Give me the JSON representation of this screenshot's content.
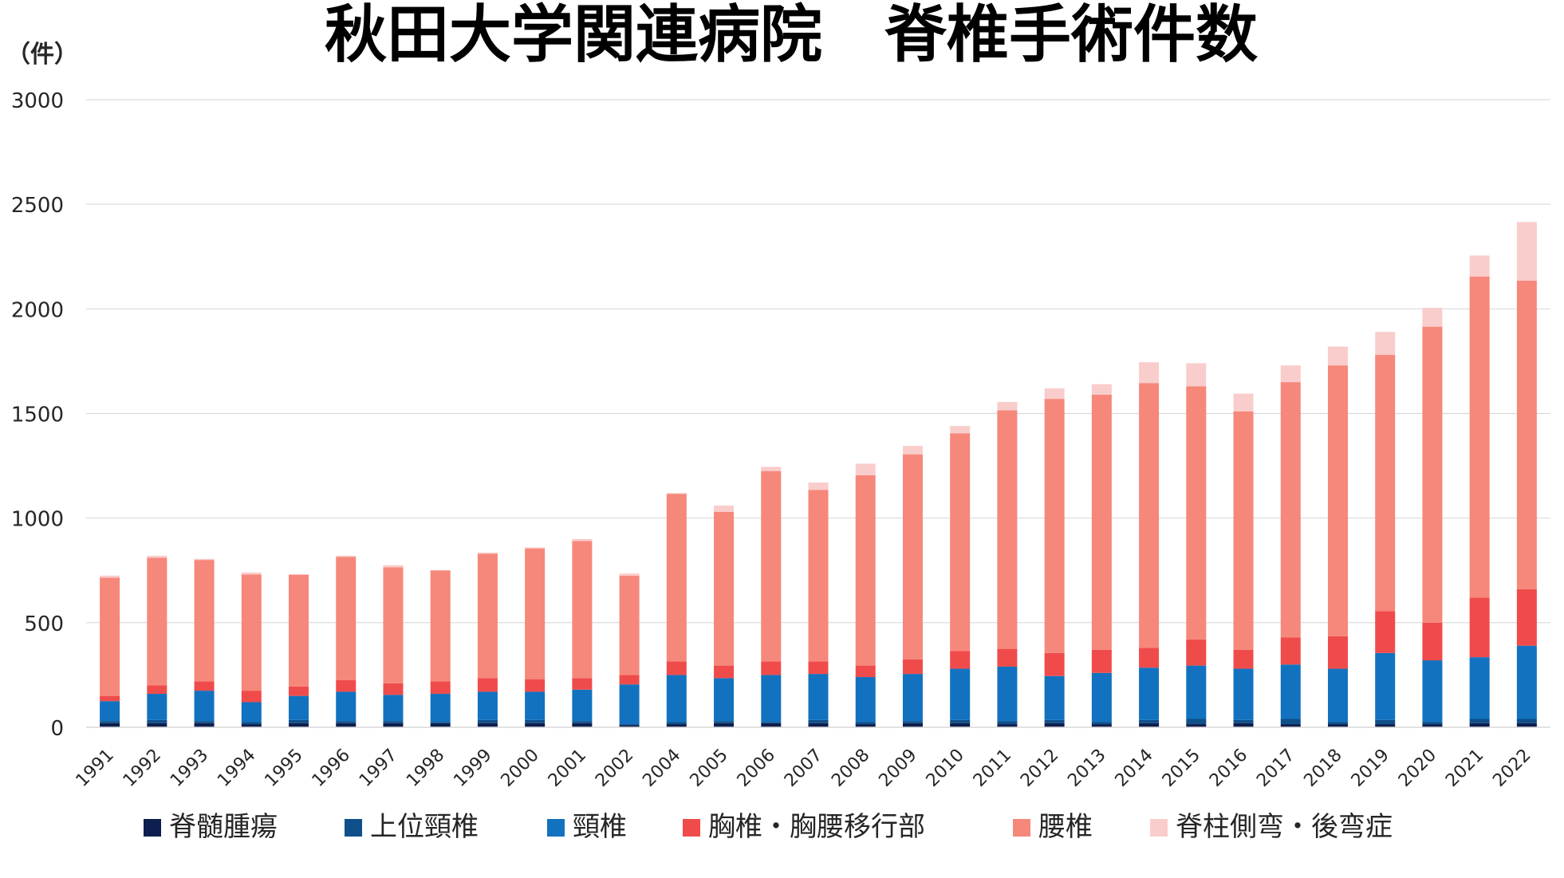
{
  "chart_data": {
    "type": "bar",
    "stacked": true,
    "title": "秋田大学関連病院　脊椎手術件数",
    "ylabel": "（件）",
    "xlabel": "",
    "ylim": [
      0,
      3000
    ],
    "yticks": [
      0,
      500,
      1000,
      1500,
      2000,
      2500,
      3000
    ],
    "grid": true,
    "legend_position": "bottom",
    "categories": [
      "1991",
      "1992",
      "1993",
      "1994",
      "1995",
      "1996",
      "1997",
      "1998",
      "1999",
      "2000",
      "2001",
      "2002",
      "2004",
      "2005",
      "2006",
      "2007",
      "2008",
      "2009",
      "2010",
      "2011",
      "2012",
      "2013",
      "2014",
      "2015",
      "2016",
      "2017",
      "2018",
      "2019",
      "2020",
      "2021",
      "2022"
    ],
    "series": [
      {
        "name": "脊髄腫瘍",
        "color": "#0d1f4f",
        "values": [
          20,
          20,
          20,
          15,
          20,
          20,
          20,
          20,
          20,
          20,
          20,
          10,
          15,
          20,
          20,
          20,
          15,
          20,
          20,
          15,
          20,
          15,
          20,
          15,
          20,
          15,
          15,
          15,
          15,
          20,
          20
        ]
      },
      {
        "name": "上位頸椎",
        "color": "#0f4f8a",
        "values": [
          10,
          15,
          10,
          10,
          15,
          10,
          10,
          5,
          15,
          15,
          10,
          5,
          10,
          10,
          5,
          15,
          10,
          10,
          15,
          15,
          15,
          10,
          15,
          25,
          15,
          25,
          10,
          20,
          10,
          20,
          20
        ]
      },
      {
        "name": "頸椎",
        "color": "#1272bf",
        "values": [
          95,
          125,
          145,
          95,
          115,
          140,
          125,
          135,
          135,
          135,
          150,
          190,
          225,
          205,
          225,
          220,
          215,
          225,
          245,
          260,
          210,
          235,
          250,
          255,
          245,
          260,
          255,
          320,
          295,
          295,
          350
        ]
      },
      {
        "name": "胸椎・胸腰移行部",
        "color": "#f04b4b",
        "values": [
          25,
          40,
          45,
          55,
          45,
          55,
          55,
          60,
          65,
          60,
          55,
          45,
          65,
          60,
          65,
          60,
          55,
          70,
          85,
          85,
          110,
          110,
          95,
          125,
          90,
          130,
          155,
          200,
          180,
          285,
          270
        ]
      },
      {
        "name": "腰椎",
        "color": "#f6877b",
        "values": [
          565,
          610,
          580,
          555,
          535,
          590,
          555,
          530,
          595,
          625,
          655,
          475,
          800,
          735,
          910,
          820,
          910,
          980,
          1040,
          1140,
          1215,
          1220,
          1265,
          1210,
          1140,
          1220,
          1295,
          1225,
          1415,
          1535,
          1475
        ]
      },
      {
        "name": "脊柱側弯・後弯症",
        "color": "#f9cdcb",
        "values": [
          10,
          10,
          5,
          10,
          0,
          5,
          10,
          0,
          5,
          5,
          10,
          10,
          5,
          30,
          20,
          35,
          55,
          40,
          35,
          40,
          50,
          50,
          100,
          110,
          85,
          80,
          90,
          110,
          90,
          100,
          280
        ]
      }
    ]
  }
}
